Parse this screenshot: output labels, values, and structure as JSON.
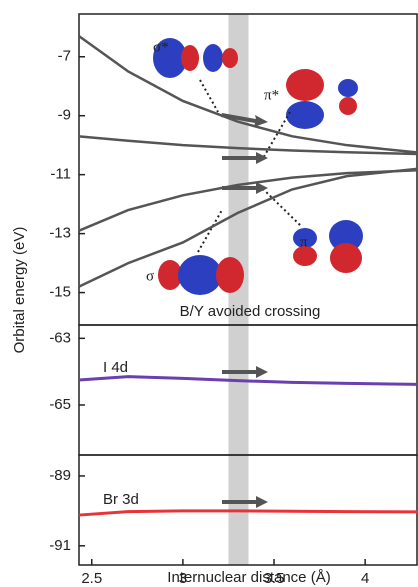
{
  "chart_data": [
    {
      "type": "line",
      "ylabel": "Orbital energy (eV)",
      "annotation": "B/Y avoided crossing",
      "x": [
        2.43,
        2.7,
        3.0,
        3.3,
        3.6,
        3.9,
        4.29
      ],
      "xlim": [
        2.43,
        4.29
      ],
      "ylim": [
        -16.1,
        -5.55
      ],
      "yticks": [
        -7,
        -9,
        -11,
        -13,
        -15
      ],
      "highlight_x": [
        3.25,
        3.36
      ],
      "highlight_color": "#d0d0d0",
      "series": [
        {
          "name": "σ*",
          "color": "#555555",
          "values": [
            -6.3,
            -7.5,
            -8.5,
            -9.2,
            -9.7,
            -10.0,
            -10.25
          ]
        },
        {
          "name": "π*",
          "color": "#555555",
          "values": [
            -9.7,
            -9.85,
            -10.0,
            -10.1,
            -10.18,
            -10.24,
            -10.3
          ]
        },
        {
          "name": "π",
          "color": "#555555",
          "values": [
            -12.9,
            -12.2,
            -11.7,
            -11.35,
            -11.1,
            -10.95,
            -10.85
          ]
        },
        {
          "name": "σ",
          "color": "#555555",
          "values": [
            -14.8,
            -14.0,
            -13.3,
            -12.3,
            -11.5,
            -11.05,
            -10.8
          ]
        }
      ]
    },
    {
      "type": "line",
      "x": [
        2.43,
        2.7,
        3.0,
        3.3,
        3.6,
        3.9,
        4.29
      ],
      "xlim": [
        2.43,
        4.29
      ],
      "ylim": [
        -66.5,
        -62.6
      ],
      "yticks": [
        -63,
        -65
      ],
      "highlight_x": [
        3.25,
        3.36
      ],
      "highlight_color": "#d0d0d0",
      "series": [
        {
          "name": "I 4d",
          "color": "#6a3fb0",
          "values": [
            -64.25,
            -64.15,
            -64.2,
            -64.27,
            -64.32,
            -64.35,
            -64.38
          ]
        }
      ]
    },
    {
      "type": "line",
      "xlabel": "Internuclear distance (Å)",
      "x": [
        2.43,
        2.7,
        3.0,
        3.3,
        3.6,
        3.9,
        4.29
      ],
      "xlim": [
        2.43,
        4.29
      ],
      "ylim": [
        -91.55,
        -88.4
      ],
      "yticks": [
        -89,
        -91
      ],
      "xticks": [
        2.5,
        3.0,
        3.5,
        4.0
      ],
      "highlight_x": [
        3.25,
        3.36
      ],
      "highlight_color": "#d0d0d0",
      "series": [
        {
          "name": "Br 3d",
          "color": "#e8333a",
          "values": [
            -90.12,
            -90.02,
            -90.0,
            -90.0,
            -90.01,
            -90.02,
            -90.03
          ]
        }
      ]
    }
  ]
}
